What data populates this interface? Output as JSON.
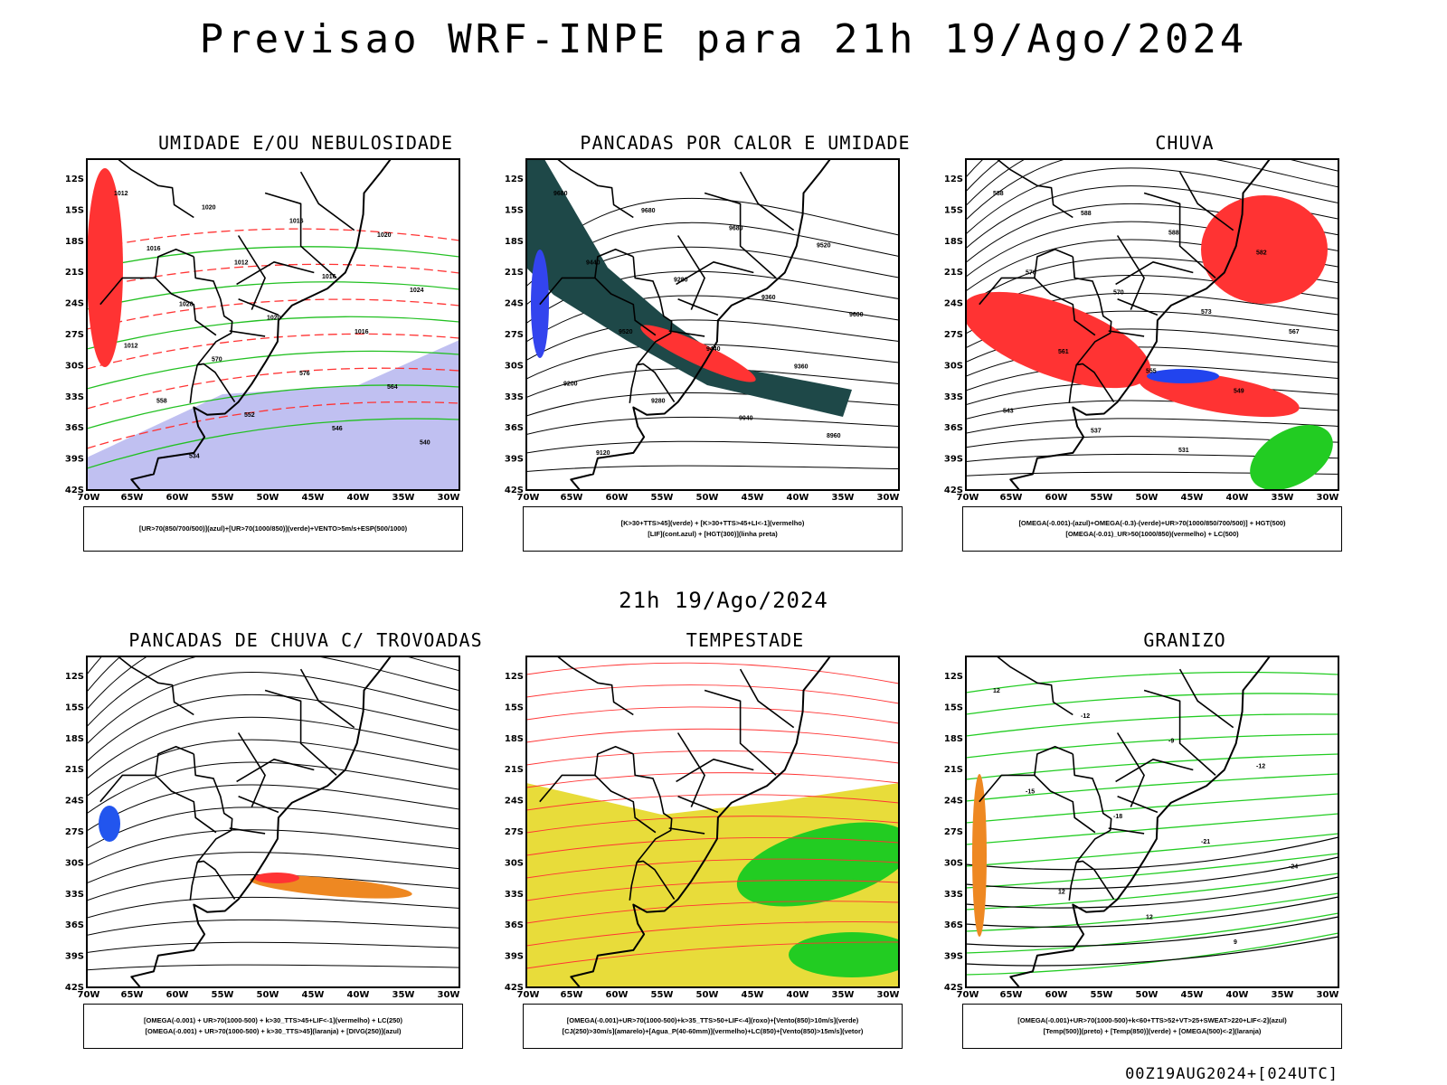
{
  "title": "Previsao WRF-INPE  para 21h 19/Ago/2024",
  "row_title": "21h 19/Ago/2024",
  "footer": "00Z19AUG2024+[024UTC]",
  "axes": {
    "lat_labels": [
      "12S",
      "15S",
      "18S",
      "21S",
      "24S",
      "27S",
      "30S",
      "33S",
      "36S",
      "39S",
      "42S"
    ],
    "lon_labels": [
      "70W",
      "65W",
      "60W",
      "55W",
      "50W",
      "45W",
      "40W",
      "35W",
      "30W"
    ]
  },
  "panels": [
    {
      "id": "umidade",
      "title": "UMIDADE E/OU NEBULOSIDADE",
      "legend": [
        "[UR>70(850/700/500)](azul)+[UR>70(1000/850)](verde)+VENTO>5m/s+ESP(500/1000)"
      ],
      "contour_labels": [
        "1012",
        "1020",
        "1016",
        "1020",
        "1016",
        "1012",
        "1016",
        "1024",
        "1028",
        "1020",
        "1016",
        "1012",
        "570",
        "576",
        "564",
        "558",
        "552",
        "546",
        "540",
        "534"
      ],
      "colors": {
        "field": "#b0b0ee",
        "green": "#22c022",
        "red": "#ff3333"
      }
    },
    {
      "id": "pancadas-calor",
      "title": "PANCADAS POR CALOR E UMIDADE",
      "legend": [
        "[K>30+TTS>45](verde) + [K>30+TTS>45+LI<-1](vermelho)",
        "[LIF](cont.azul) + [HGT(300)](linha preta)"
      ],
      "contour_labels": [
        "9680",
        "9680",
        "9680",
        "9520",
        "9440",
        "9280",
        "9360",
        "9600",
        "9520",
        "9440",
        "9360",
        "9200",
        "9280",
        "9040",
        "8960",
        "9120"
      ],
      "colors": {
        "field": "#1e4848",
        "red": "#ff3333",
        "blue": "#3344ee"
      }
    },
    {
      "id": "chuva",
      "title": "CHUVA",
      "legend": [
        "[OMEGA(-0.001)-(azul)+OMEGA(-0.3)-(verde)+UR>70(1000/850/700/500)] + HGT(500)",
        "[OMEGA(-0.01)_UR>50(1000/850)(vermelho) + LC(500)"
      ],
      "contour_labels": [
        "588",
        "588",
        "588",
        "582",
        "576",
        "570",
        "573",
        "567",
        "561",
        "555",
        "549",
        "543",
        "537",
        "531"
      ],
      "colors": {
        "red": "#ff3333",
        "green": "#22cc22",
        "blue": "#2244ee"
      }
    },
    {
      "id": "trovoadas",
      "title": "PANCADAS DE CHUVA C/ TROVOADAS",
      "legend": [
        "[OMEGA(-0.001) + UR>70(1000-500) + k>30_TTS>45+LIF<-1](vermelho) + LC(250)",
        "[OMEGA(-0.001) + UR>70(1000-500) + k>30_TTS>45](laranja) + [DIVG(250)](azul)"
      ],
      "contour_labels": [],
      "colors": {
        "orange": "#ee8822",
        "red": "#ff3333",
        "blue": "#2255ee"
      }
    },
    {
      "id": "tempestade",
      "title": "TEMPESTADE",
      "legend": [
        "[OMEGA(-0.001)+UR>70(1000-500)+k>35_TTS>50+LIF<-4](roxo)+[Vento(850)>10m/s](verde)",
        "[CJ(250)>30m/s](amarelo)+[Agua_P(40-60mm)](vermelho)+LC(850)+[Vento(850)>15m/s](vetor)"
      ],
      "contour_labels": [],
      "colors": {
        "yellow": "#e8dc3a",
        "green": "#22cc22",
        "red": "#ff3333"
      }
    },
    {
      "id": "granizo",
      "title": "GRANIZO",
      "legend": [
        "[OMEGA(-0.001)+UR>70(1000-500)+k<60+TTS>52+VT>25+SWEAT>220+LIF<-2](azul)",
        "[Temp(500)](preto) + [Temp(850)](verde) + [OMEGA(500)<-2](laranja)"
      ],
      "contour_labels": [
        "12",
        "-12",
        "-9",
        "-12",
        "-15",
        "-18",
        "-21",
        "-24",
        "12",
        "12",
        "9"
      ],
      "colors": {
        "green": "#22cc22",
        "orange": "#ee8822",
        "blue": "#2244ee"
      }
    }
  ]
}
